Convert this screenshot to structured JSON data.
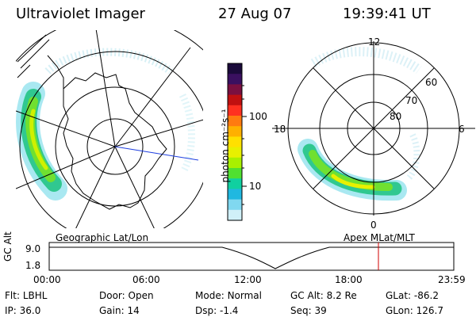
{
  "header": {
    "instrument": "Ultraviolet Imager",
    "date": "27 Aug 07",
    "time": "19:39:41 UT"
  },
  "left_panel": {
    "caption": "Geographic Lat/Lon"
  },
  "right_panel": {
    "caption": "Apex MLat/MLT",
    "clock_labels": {
      "top": "12",
      "left": "18",
      "right": "6",
      "bottom": "0"
    },
    "lat_labels": [
      "60",
      "70",
      "80"
    ]
  },
  "colorbar": {
    "unit_label": "photon cm⁻²s⁻¹",
    "ticks": [
      "100",
      "10"
    ],
    "colors": [
      "#1a0a3a",
      "#3a1060",
      "#7a1040",
      "#c01010",
      "#ff3020",
      "#ff7a10",
      "#ffb000",
      "#ffe000",
      "#e8f000",
      "#a8f000",
      "#50e030",
      "#10d0a0",
      "#20b8e0",
      "#80d8f0",
      "#d0f0f8"
    ]
  },
  "timeline": {
    "axis_label": "GC Alt",
    "y_ticks": [
      "9.0",
      "1.8"
    ],
    "x_ticks": [
      "00:00",
      "06:00",
      "12:00",
      "18:00",
      "23:59"
    ],
    "marker_color": "#d00000"
  },
  "info": {
    "row1": [
      {
        "key": "Flt:",
        "value": "LBHL"
      },
      {
        "key": "Door:",
        "value": "Open"
      },
      {
        "key": "Mode:",
        "value": "Normal"
      },
      {
        "key": "GC Alt:",
        "value": "8.2 Re"
      },
      {
        "key": "GLat:",
        "value": "-86.2"
      }
    ],
    "row2": [
      {
        "key": "IP:",
        "value": "36.0"
      },
      {
        "key": "Gain:",
        "value": "14"
      },
      {
        "key": "Dsp:",
        "value": "-1.4"
      },
      {
        "key": "Seq:",
        "value": "39"
      },
      {
        "key": "GLon:",
        "value": "126.7"
      }
    ]
  }
}
